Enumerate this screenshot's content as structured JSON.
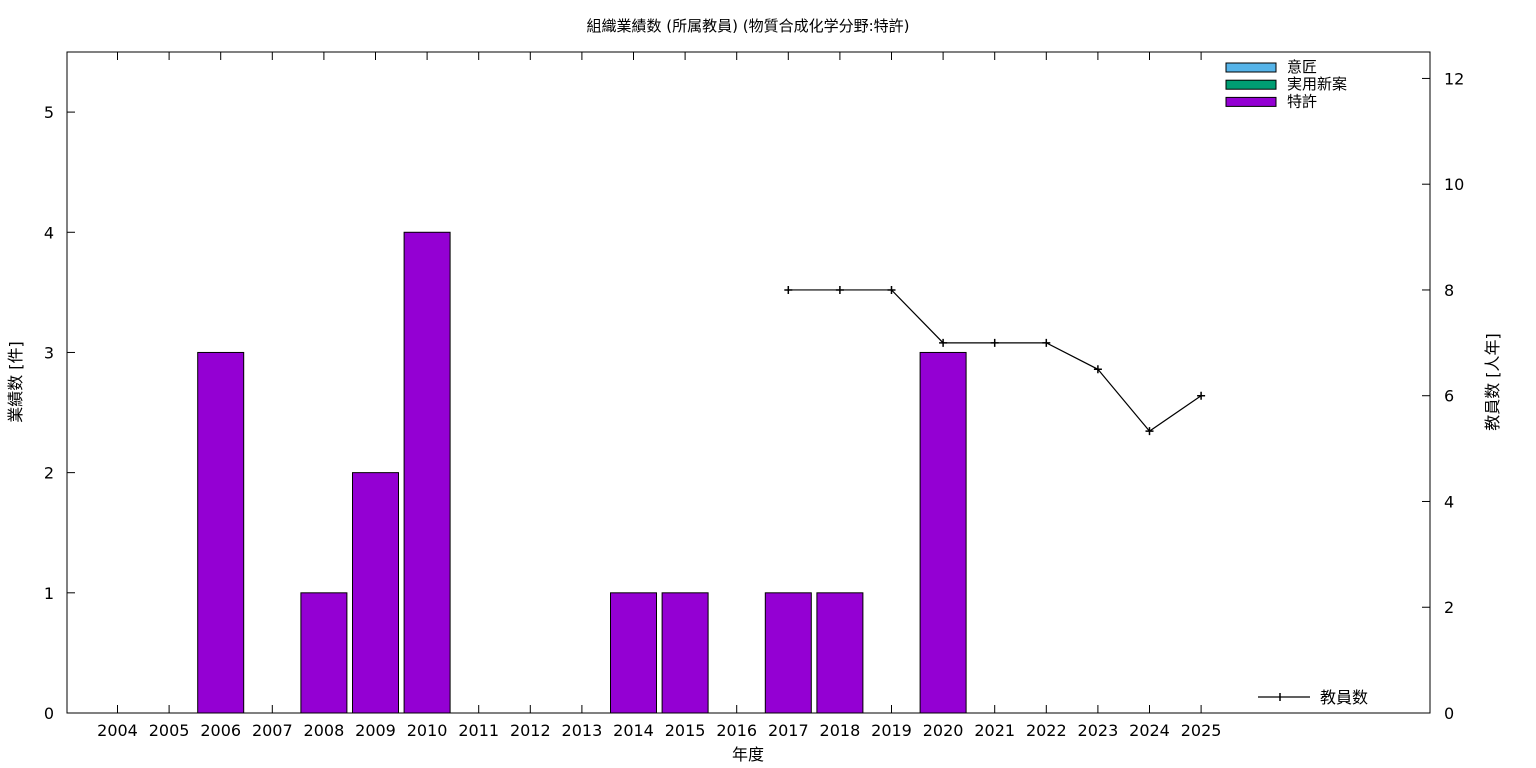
{
  "chart_data": {
    "type": "bar",
    "title": "組織業績数 (所属教員) (物質合成化学分野:特許)",
    "xlabel": "年度",
    "ylabel": "業績数 [件]",
    "y2label": "教員数 [人年]",
    "categories": [
      "2004",
      "2005",
      "2006",
      "2007",
      "2008",
      "2009",
      "2010",
      "2011",
      "2012",
      "2013",
      "2014",
      "2015",
      "2016",
      "2017",
      "2018",
      "2019",
      "2020",
      "2021",
      "2022",
      "2023",
      "2024",
      "2025"
    ],
    "ylim": [
      0,
      5.5
    ],
    "y2lim": [
      0,
      12.5
    ],
    "yticks": [
      0,
      1,
      2,
      3,
      4,
      5
    ],
    "y2ticks": [
      0,
      2,
      4,
      6,
      8,
      10,
      12
    ],
    "series": [
      {
        "name": "意匠",
        "color": "#56b4e9",
        "values": [
          0,
          0,
          0,
          0,
          0,
          0,
          0,
          0,
          0,
          0,
          0,
          0,
          0,
          0,
          0,
          0,
          0,
          0,
          0,
          0,
          0,
          0
        ]
      },
      {
        "name": "実用新案",
        "color": "#009e73",
        "values": [
          0,
          0,
          0,
          0,
          0,
          0,
          0,
          0,
          0,
          0,
          0,
          0,
          0,
          0,
          0,
          0,
          0,
          0,
          0,
          0,
          0,
          0
        ]
      },
      {
        "name": "特許",
        "color": "#9400d3",
        "values": [
          0,
          0,
          3,
          0,
          1,
          2,
          4,
          0,
          0,
          0,
          1,
          1,
          0,
          1,
          1,
          0,
          3,
          0,
          0,
          0,
          0,
          0
        ]
      }
    ],
    "line": {
      "name": "教員数",
      "axis": "y2",
      "color": "#000000",
      "x": [
        "2017",
        "2018",
        "2019",
        "2020",
        "2021",
        "2022",
        "2023",
        "2024",
        "2025"
      ],
      "values": [
        8,
        8,
        8,
        7,
        7,
        7,
        6.5,
        5.33,
        6
      ]
    },
    "legend_position": "top-right",
    "line_legend_position": "bottom-right",
    "grid": false
  }
}
